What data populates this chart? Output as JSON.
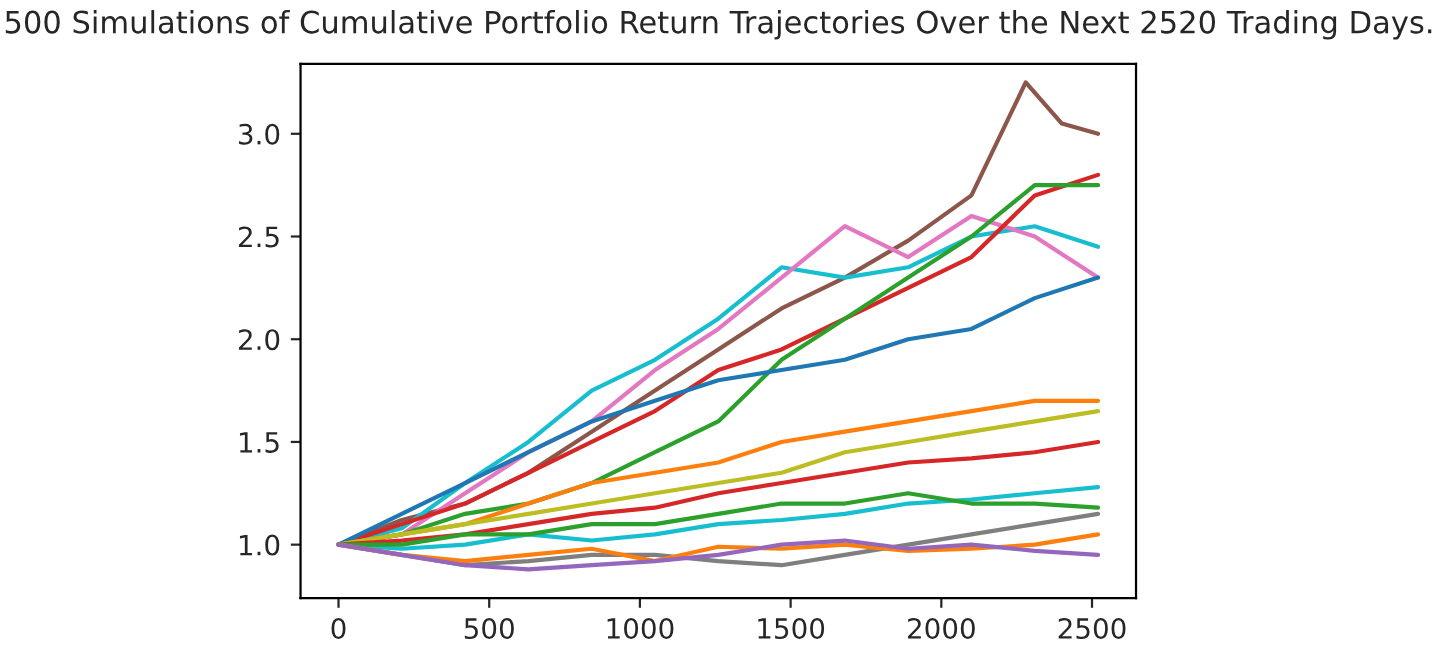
{
  "chart_data": {
    "type": "line",
    "title": "500 Simulations of Cumulative Portfolio Return Trajectories Over the Next 2520 Trading Days.",
    "x": [
      0,
      210,
      420,
      630,
      840,
      1050,
      1260,
      1470,
      1680,
      1890,
      2100,
      2310,
      2520
    ],
    "xlim": [
      -126,
      2646
    ],
    "xticks": [
      0,
      500,
      1000,
      1500,
      2000,
      2500
    ],
    "ylim": [
      0.74,
      3.34
    ],
    "yticks": [
      {
        "value": 1.0,
        "label": "1.0"
      },
      {
        "value": 1.5,
        "label": "1.5"
      },
      {
        "value": 2.0,
        "label": "2.0"
      },
      {
        "value": 2.5,
        "label": "2.5"
      },
      {
        "value": 3.0,
        "label": "3.0"
      }
    ],
    "grid": false,
    "legend": false,
    "marker": "none",
    "line_style": "solid",
    "series": [
      {
        "color": "#8c564b",
        "x": [
          0,
          210,
          420,
          630,
          840,
          1050,
          1260,
          1470,
          1680,
          1890,
          2100,
          2280,
          2400,
          2520
        ],
        "values": [
          1.0,
          1.12,
          1.2,
          1.35,
          1.55,
          1.75,
          1.95,
          2.15,
          2.3,
          2.48,
          2.7,
          3.25,
          3.05,
          3.0
        ]
      },
      {
        "color": "#17becf",
        "values": [
          1.0,
          1.08,
          1.3,
          1.5,
          1.75,
          1.9,
          2.1,
          2.35,
          2.3,
          2.35,
          2.5,
          2.55,
          2.45
        ]
      },
      {
        "color": "#e377c2",
        "values": [
          1.0,
          1.05,
          1.25,
          1.45,
          1.6,
          1.85,
          2.05,
          2.3,
          2.55,
          2.4,
          2.6,
          2.5,
          2.3
        ]
      },
      {
        "color": "#d62728",
        "values": [
          1.0,
          1.1,
          1.2,
          1.35,
          1.5,
          1.65,
          1.85,
          1.95,
          2.1,
          2.25,
          2.4,
          2.7,
          2.8
        ]
      },
      {
        "color": "#2ca02c",
        "values": [
          1.0,
          1.05,
          1.15,
          1.2,
          1.3,
          1.45,
          1.6,
          1.9,
          2.1,
          2.3,
          2.5,
          2.75,
          2.75
        ]
      },
      {
        "color": "#1f77b4",
        "values": [
          1.0,
          1.15,
          1.3,
          1.45,
          1.6,
          1.7,
          1.8,
          1.85,
          1.9,
          2.0,
          2.05,
          2.2,
          2.3
        ]
      },
      {
        "color": "#ff7f0e",
        "values": [
          1.0,
          1.05,
          1.1,
          1.2,
          1.3,
          1.35,
          1.4,
          1.5,
          1.55,
          1.6,
          1.65,
          1.7,
          1.7
        ]
      },
      {
        "color": "#bcbd22",
        "values": [
          1.0,
          1.05,
          1.1,
          1.15,
          1.2,
          1.25,
          1.3,
          1.35,
          1.45,
          1.5,
          1.55,
          1.6,
          1.65
        ]
      },
      {
        "color": "#d62728",
        "values": [
          1.0,
          1.02,
          1.05,
          1.1,
          1.15,
          1.18,
          1.25,
          1.3,
          1.35,
          1.4,
          1.42,
          1.45,
          1.5
        ]
      },
      {
        "color": "#17becf",
        "values": [
          1.0,
          0.98,
          1.0,
          1.05,
          1.02,
          1.05,
          1.1,
          1.12,
          1.15,
          1.2,
          1.22,
          1.25,
          1.28
        ]
      },
      {
        "color": "#2ca02c",
        "values": [
          1.0,
          1.0,
          1.05,
          1.05,
          1.1,
          1.1,
          1.15,
          1.2,
          1.2,
          1.25,
          1.2,
          1.2,
          1.18
        ]
      },
      {
        "color": "#7f7f7f",
        "values": [
          1.0,
          0.95,
          0.9,
          0.92,
          0.95,
          0.95,
          0.92,
          0.9,
          0.95,
          1.0,
          1.05,
          1.1,
          1.15
        ]
      },
      {
        "color": "#ff7f0e",
        "values": [
          1.0,
          0.95,
          0.92,
          0.95,
          0.98,
          0.92,
          0.99,
          0.98,
          1.0,
          0.97,
          0.98,
          1.0,
          1.05
        ]
      },
      {
        "color": "#9467bd",
        "values": [
          1.0,
          0.95,
          0.9,
          0.88,
          0.9,
          0.92,
          0.95,
          1.0,
          1.02,
          0.98,
          1.0,
          0.97,
          0.95
        ]
      }
    ]
  }
}
